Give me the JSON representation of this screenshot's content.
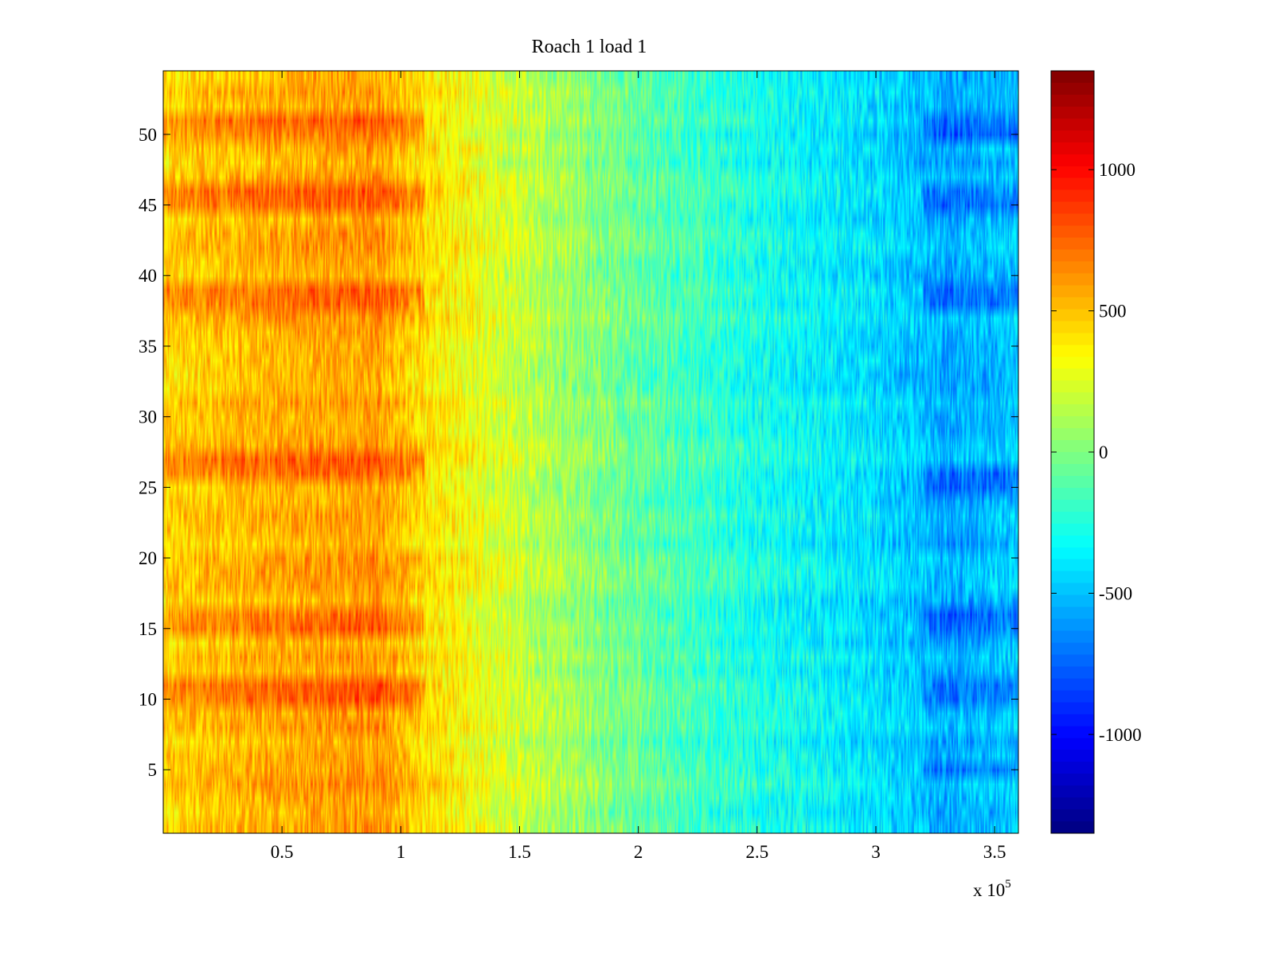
{
  "chart_data": {
    "type": "heatmap",
    "title": "Roach 1 load 1",
    "xlabel": "",
    "ylabel": "",
    "x_exponent_label": {
      "prefix": "x 10",
      "exponent": "5"
    },
    "x_range": [
      0,
      3.6
    ],
    "x_ticks": [
      0.5,
      1,
      1.5,
      2,
      2.5,
      3,
      3.5
    ],
    "x_tick_labels": [
      "0.5",
      "1",
      "1.5",
      "2",
      "2.5",
      "3",
      "3.5"
    ],
    "y_range": [
      0.5,
      54.5
    ],
    "y_ticks": [
      5,
      10,
      15,
      20,
      25,
      30,
      35,
      40,
      45,
      50
    ],
    "y_tick_labels": [
      "5",
      "10",
      "15",
      "20",
      "25",
      "30",
      "35",
      "40",
      "45",
      "50"
    ],
    "rows": 54,
    "colormap": "jet",
    "color_range": [
      -1350,
      1350
    ],
    "colorbar_ticks": [
      -1000,
      -500,
      0,
      500,
      1000
    ],
    "colorbar_tick_labels": [
      "-1000",
      "-500",
      "0",
      "500",
      "1000"
    ],
    "trend": {
      "x": [
        0,
        0.5,
        0.9,
        1.1,
        1.5,
        2.0,
        2.5,
        3.0,
        3.3,
        3.6
      ],
      "mean_value": [
        450,
        550,
        600,
        420,
        180,
        -80,
        -280,
        -420,
        -560,
        -480
      ],
      "noise_amplitude": 180
    },
    "hot_rows": [
      10,
      11,
      15,
      16,
      26,
      27,
      38,
      39,
      45,
      46,
      50,
      51
    ],
    "cold_rows": [
      5,
      10,
      11,
      15,
      16,
      25,
      26,
      38,
      39,
      45,
      46,
      50,
      51
    ]
  }
}
